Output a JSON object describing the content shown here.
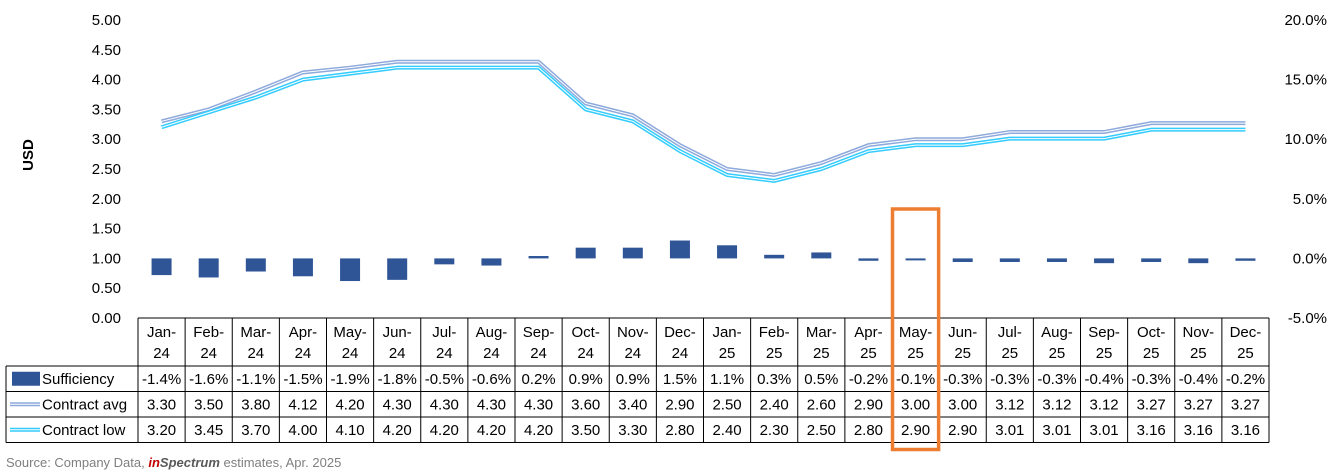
{
  "chart_data": {
    "type": "bar+line+table",
    "categories": [
      [
        "Jan-",
        "24"
      ],
      [
        "Feb-",
        "24"
      ],
      [
        "Mar-",
        "24"
      ],
      [
        "Apr-",
        "24"
      ],
      [
        "May-",
        "24"
      ],
      [
        "Jun-",
        "24"
      ],
      [
        "Jul-",
        "24"
      ],
      [
        "Aug-",
        "24"
      ],
      [
        "Sep-",
        "24"
      ],
      [
        "Oct-",
        "24"
      ],
      [
        "Nov-",
        "24"
      ],
      [
        "Dec-",
        "24"
      ],
      [
        "Jan-",
        "25"
      ],
      [
        "Feb-",
        "25"
      ],
      [
        "Mar-",
        "25"
      ],
      [
        "Apr-",
        "25"
      ],
      [
        "May-",
        "25"
      ],
      [
        "Jun-",
        "25"
      ],
      [
        "Jul-",
        "25"
      ],
      [
        "Aug-",
        "25"
      ],
      [
        "Sep-",
        "25"
      ],
      [
        "Oct-",
        "25"
      ],
      [
        "Nov-",
        "25"
      ],
      [
        "Dec-",
        "25"
      ]
    ],
    "ylabel": "USD",
    "y_left": {
      "ylim": [
        0,
        5
      ],
      "ticks": [
        "0.00",
        "0.50",
        "1.00",
        "1.50",
        "2.00",
        "2.50",
        "3.00",
        "3.50",
        "4.00",
        "4.50",
        "5.00"
      ]
    },
    "y_right": {
      "ylim": [
        -5,
        20
      ],
      "ticks": [
        "-5.0%",
        "0.0%",
        "5.0%",
        "10.0%",
        "15.0%",
        "20.0%"
      ]
    },
    "series": [
      {
        "name": "Sufficiency",
        "type": "bar",
        "axis": "right",
        "color": "#2f5597",
        "values": [
          -1.4,
          -1.6,
          -1.1,
          -1.5,
          -1.9,
          -1.8,
          -0.5,
          -0.6,
          0.2,
          0.9,
          0.9,
          1.5,
          1.1,
          0.3,
          0.5,
          -0.2,
          -0.1,
          -0.3,
          -0.3,
          -0.3,
          -0.4,
          -0.3,
          -0.4,
          -0.2
        ],
        "labels": [
          "-1.4%",
          "-1.6%",
          "-1.1%",
          "-1.5%",
          "-1.9%",
          "-1.8%",
          "-0.5%",
          "-0.6%",
          "0.2%",
          "0.9%",
          "0.9%",
          "1.5%",
          "1.1%",
          "0.3%",
          "0.5%",
          "-0.2%",
          "-0.1%",
          "-0.3%",
          "-0.3%",
          "-0.3%",
          "-0.4%",
          "-0.3%",
          "-0.4%",
          "-0.2%"
        ]
      },
      {
        "name": "Contract avg",
        "type": "line",
        "axis": "left",
        "color": "#8ea9db",
        "values": [
          3.3,
          3.5,
          3.8,
          4.12,
          4.2,
          4.3,
          4.3,
          4.3,
          4.3,
          3.6,
          3.4,
          2.9,
          2.5,
          2.4,
          2.6,
          2.9,
          3.0,
          3.0,
          3.12,
          3.12,
          3.12,
          3.27,
          3.27,
          3.27
        ],
        "labels": [
          "3.30",
          "3.50",
          "3.80",
          "4.12",
          "4.20",
          "4.30",
          "4.30",
          "4.30",
          "4.30",
          "3.60",
          "3.40",
          "2.90",
          "2.50",
          "2.40",
          "2.60",
          "2.90",
          "3.00",
          "3.00",
          "3.12",
          "3.12",
          "3.12",
          "3.27",
          "3.27",
          "3.27"
        ]
      },
      {
        "name": "Contract low",
        "type": "line",
        "axis": "left",
        "color": "#33ccff",
        "values": [
          3.2,
          3.45,
          3.7,
          4.0,
          4.1,
          4.2,
          4.2,
          4.2,
          4.2,
          3.5,
          3.3,
          2.8,
          2.4,
          2.3,
          2.5,
          2.8,
          2.9,
          2.9,
          3.01,
          3.01,
          3.01,
          3.16,
          3.16,
          3.16
        ],
        "labels": [
          "3.20",
          "3.45",
          "3.70",
          "4.00",
          "4.10",
          "4.20",
          "4.20",
          "4.20",
          "4.20",
          "3.50",
          "3.30",
          "2.80",
          "2.40",
          "2.30",
          "2.50",
          "2.80",
          "2.90",
          "2.90",
          "3.01",
          "3.01",
          "3.01",
          "3.16",
          "3.16",
          "3.16"
        ]
      }
    ],
    "highlight": {
      "category_index": 16,
      "color": "#ed7d31"
    },
    "grid": false,
    "legend": "table-left"
  },
  "source": {
    "prefix": "Source: Company Data, ",
    "brand_a": "in",
    "brand_b": "Spectrum",
    "suffix": " estimates, Apr. 2025"
  }
}
